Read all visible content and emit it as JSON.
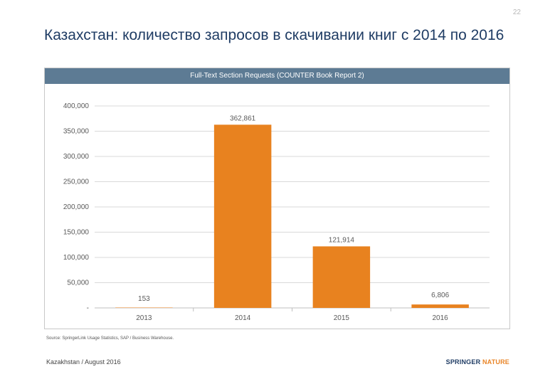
{
  "page": {
    "number": "22",
    "title": "Казахстан: количество запросов в скачивании книг с 2014 по 2016"
  },
  "footer": {
    "source": "Source: SpringerLink Usage Statistics, SAP / Business Warehouse.",
    "left": "Kazakhstan / August 2016",
    "logo_part1": "SPRINGER",
    "logo_part2": "NATURE"
  },
  "chart_data": {
    "type": "bar",
    "title": "Full-Text Section Requests (COUNTER Book Report 2)",
    "categories": [
      "2013",
      "2014",
      "2015",
      "2016"
    ],
    "values": [
      153,
      362861,
      121914,
      6806
    ],
    "value_labels": [
      "153",
      "362,861",
      "121,914",
      "6,806"
    ],
    "ylim": [
      0,
      400000
    ],
    "yticks": [
      0,
      50000,
      100000,
      150000,
      200000,
      250000,
      300000,
      350000,
      400000
    ],
    "ytick_labels": [
      "-",
      "50,000",
      "100,000",
      "150,000",
      "200,000",
      "250,000",
      "300,000",
      "350,000",
      "400,000"
    ],
    "bar_color": "#e8821f",
    "gridlines": true,
    "legend": "none"
  }
}
